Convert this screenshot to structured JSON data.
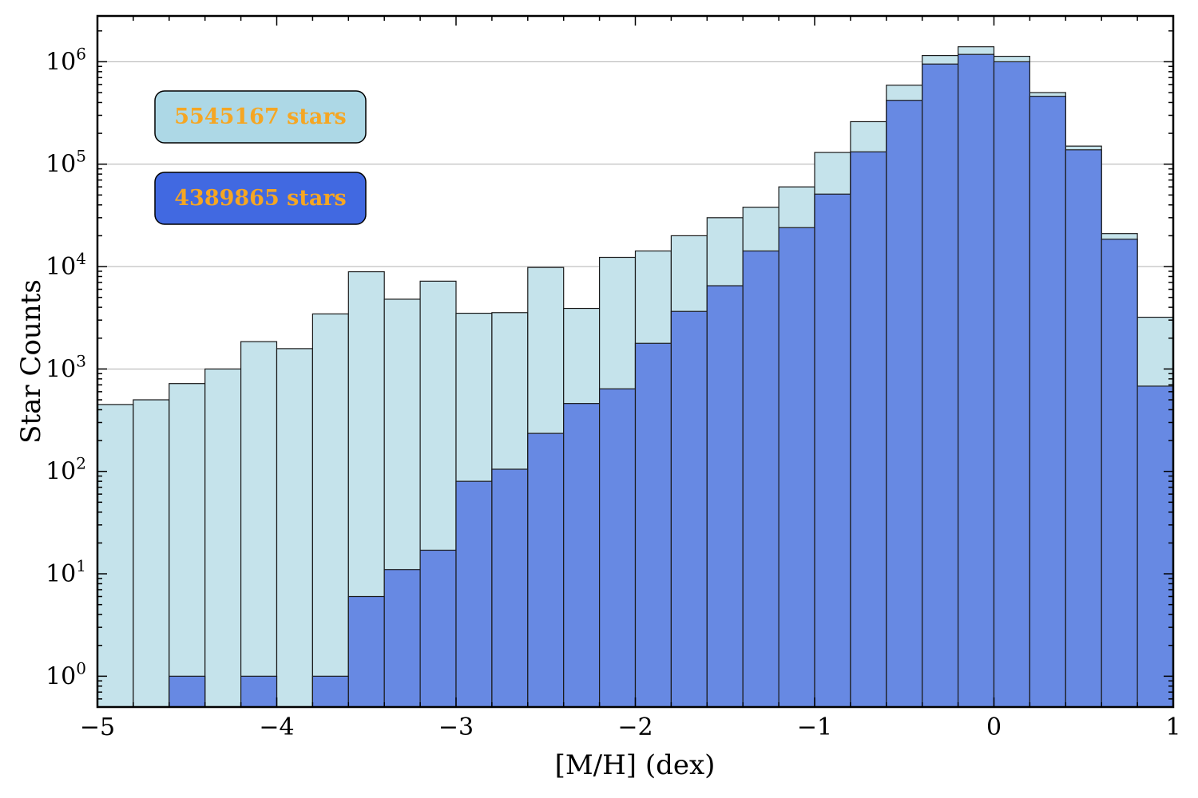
{
  "chart_data": {
    "type": "bar",
    "subtype": "overlaid-histogram",
    "title": "",
    "xlabel": "[M/H] (dex)",
    "ylabel": "Star Counts",
    "xlim": [
      -5,
      1
    ],
    "ylim": [
      0.5,
      2800000
    ],
    "yscale": "log",
    "grid": "horizontal at y-ticks",
    "bin_edges": [
      -5.0,
      -4.8,
      -4.6,
      -4.4,
      -4.2,
      -4.0,
      -3.8,
      -3.6,
      -3.4,
      -3.2,
      -3.0,
      -2.8,
      -2.6,
      -2.4,
      -2.2,
      -2.0,
      -1.8,
      -1.6,
      -1.4,
      -1.2,
      -1.0,
      -0.8,
      -0.6,
      -0.4,
      -0.2,
      0.0,
      0.2,
      0.4,
      0.6,
      0.8,
      1.0
    ],
    "x_ticks": [
      -5,
      -4,
      -3,
      -2,
      -1,
      0,
      1
    ],
    "x_tick_labels": [
      "−5",
      "−4",
      "−3",
      "−2",
      "−1",
      "0",
      "1"
    ],
    "y_ticks": [
      1,
      10,
      100,
      1000,
      10000,
      100000,
      1000000
    ],
    "y_tick_labels": [
      {
        "base": "10",
        "exp": "0"
      },
      {
        "base": "10",
        "exp": "1"
      },
      {
        "base": "10",
        "exp": "2"
      },
      {
        "base": "10",
        "exp": "3"
      },
      {
        "base": "10",
        "exp": "4"
      },
      {
        "base": "10",
        "exp": "5"
      },
      {
        "base": "10",
        "exp": "6"
      }
    ],
    "series": [
      {
        "label": "5545167 stars",
        "color": "#c5e3eb",
        "values": [
          450,
          500,
          720,
          1000,
          1850,
          1580,
          3450,
          8900,
          4800,
          7200,
          3500,
          3550,
          9800,
          3900,
          12300,
          14200,
          20000,
          30000,
          38000,
          60000,
          130000,
          260000,
          590000,
          1150000,
          1400000,
          1130000,
          500000,
          150000,
          21000,
          3200
        ]
      },
      {
        "label": "4389865 stars",
        "color": "#6789e3",
        "values": [
          0,
          0,
          1,
          0,
          1,
          0,
          1,
          6,
          11,
          17,
          80,
          105,
          235,
          460,
          640,
          1780,
          3650,
          6500,
          14200,
          24000,
          51000,
          132000,
          420000,
          950000,
          1180000,
          1000000,
          460000,
          138000,
          18500,
          680
        ]
      }
    ],
    "legend": {
      "placement": "top-left",
      "entries": [
        {
          "text": "5545167 stars",
          "box_color": "#add8e6",
          "text_color": "#f5a623"
        },
        {
          "text": "4389865 stars",
          "box_color": "#4169e1",
          "text_color": "#f5a623"
        }
      ]
    }
  }
}
